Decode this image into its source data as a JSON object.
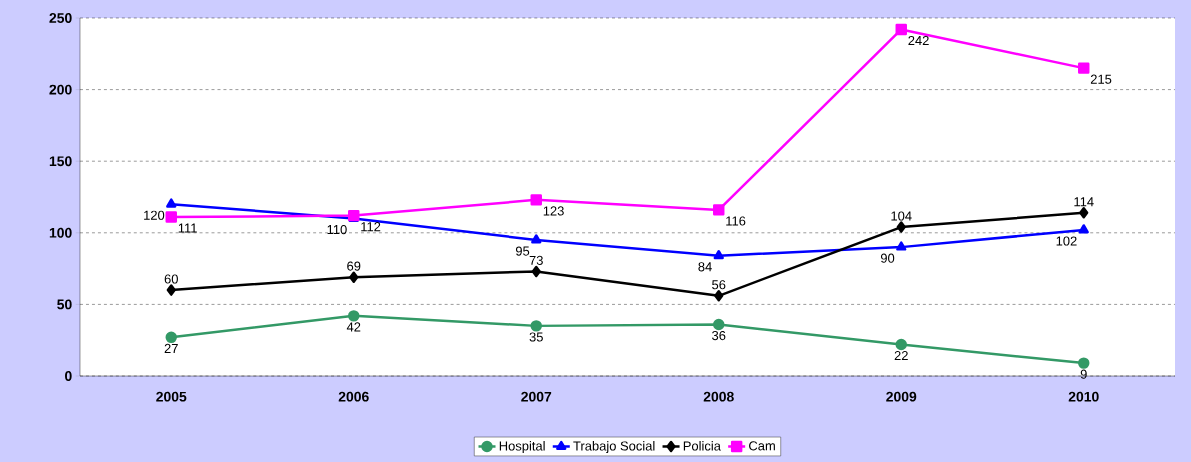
{
  "chart_data": {
    "type": "line",
    "categories": [
      "2005",
      "2006",
      "2007",
      "2008",
      "2009",
      "2010"
    ],
    "series": [
      {
        "name": "Hospital",
        "color": "#339966",
        "marker": "circle",
        "values": [
          27,
          42,
          35,
          36,
          22,
          9
        ]
      },
      {
        "name": "Trabajo Social",
        "color": "#0000ff",
        "marker": "triangle",
        "values": [
          120,
          110,
          95,
          84,
          90,
          102
        ]
      },
      {
        "name": "Policia",
        "color": "#000000",
        "marker": "diamond",
        "values": [
          60,
          69,
          73,
          56,
          104,
          114
        ]
      },
      {
        "name": "Cam",
        "color": "#ff00ff",
        "marker": "square",
        "values": [
          111,
          112,
          123,
          116,
          242,
          215
        ]
      }
    ],
    "ylim": [
      0,
      250
    ],
    "yticks": [
      0,
      50,
      100,
      150,
      200,
      250
    ],
    "grid": "y",
    "legend": "bottom",
    "data_labels": true,
    "line_style": "solid"
  }
}
